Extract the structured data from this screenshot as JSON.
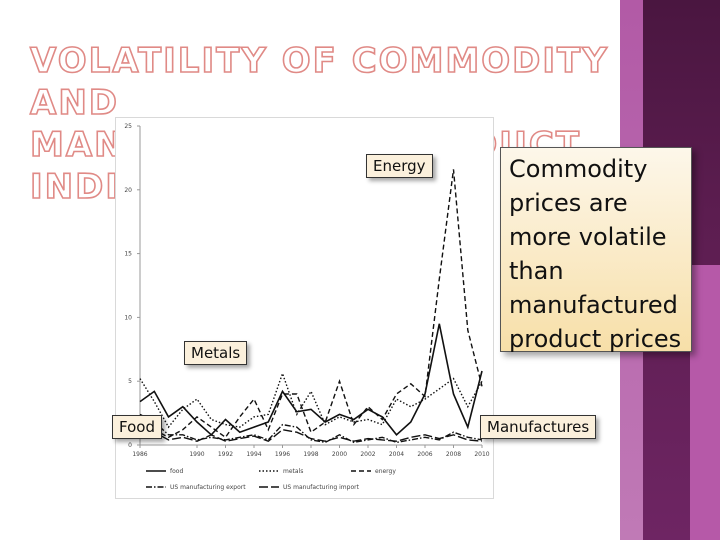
{
  "slide": {
    "title_line1": "VOLATILITY OF COMMODITY AND",
    "title_line2": "MANUFACTURED PRODUCT INDICES",
    "callout_text": "Commodity prices are more volatile than manufactured product prices",
    "label_energy": "Energy",
    "label_metals": "Metals",
    "label_food": "Food",
    "label_manufactures": "Manufactures",
    "accent_dark": "#5c1d50",
    "accent_light": "#b25aa6",
    "title_outline": "#e08a86"
  },
  "chart_data": {
    "type": "line",
    "x": [
      1986,
      1987,
      1988,
      1989,
      1990,
      1991,
      1992,
      1993,
      1994,
      1995,
      1996,
      1997,
      1998,
      1999,
      2000,
      2001,
      2002,
      2003,
      2004,
      2005,
      2006,
      2007,
      2008,
      2009,
      2010
    ],
    "x_ticks": [
      "1986",
      "1990",
      "1992",
      "1994",
      "1996",
      "1998",
      "2000",
      "2002",
      "2004",
      "2006",
      "2008",
      "2010"
    ],
    "ylim": [
      0,
      25
    ],
    "y_ticks": [
      "0",
      "5",
      "10",
      "15",
      "20",
      "25"
    ],
    "series": [
      {
        "name": "food",
        "style": "solid",
        "values": [
          3.4,
          4.2,
          2.2,
          3.0,
          1.8,
          0.8,
          2.0,
          1.0,
          1.4,
          1.8,
          4.2,
          2.6,
          2.8,
          1.8,
          2.4,
          2.0,
          2.8,
          2.2,
          0.8,
          1.8,
          4.0,
          9.5,
          4.0,
          1.4,
          5.8
        ]
      },
      {
        "name": "metals",
        "style": "dotted",
        "values": [
          5.2,
          3.4,
          1.4,
          2.8,
          3.6,
          2.0,
          1.6,
          1.4,
          2.2,
          2.4,
          5.6,
          2.4,
          4.2,
          1.6,
          2.2,
          1.8,
          2.0,
          1.6,
          3.6,
          3.0,
          3.6,
          4.4,
          5.2,
          3.0,
          5.0
        ]
      },
      {
        "name": "energy",
        "style": "dashed",
        "values": [
          1.8,
          1.2,
          0.6,
          1.2,
          2.2,
          1.4,
          0.6,
          2.2,
          3.6,
          1.2,
          4.0,
          4.0,
          1.0,
          1.8,
          5.0,
          1.6,
          3.0,
          2.0,
          4.0,
          4.8,
          3.8,
          13.0,
          21.6,
          9.0,
          4.6
        ]
      },
      {
        "name": "US manufacturing export",
        "style": "dash-dot",
        "values": [
          2.4,
          1.8,
          0.8,
          0.8,
          0.4,
          0.6,
          0.4,
          0.6,
          0.8,
          0.4,
          1.6,
          1.4,
          0.4,
          0.2,
          0.8,
          0.2,
          0.4,
          0.6,
          0.2,
          0.4,
          0.6,
          0.4,
          1.0,
          0.6,
          0.4
        ]
      },
      {
        "name": "US manufacturing import",
        "style": "long-dash",
        "values": [
          1.6,
          1.0,
          0.4,
          0.6,
          0.3,
          0.8,
          0.3,
          0.5,
          0.7,
          0.3,
          1.2,
          1.0,
          0.5,
          0.3,
          0.6,
          0.3,
          0.5,
          0.4,
          0.3,
          0.6,
          0.8,
          0.5,
          0.8,
          0.4,
          0.3
        ]
      }
    ],
    "legend": [
      "food",
      "metals",
      "energy",
      "US manufacturing export",
      "US manufacturing import"
    ],
    "legend_placement": "bottom",
    "grid": false
  }
}
